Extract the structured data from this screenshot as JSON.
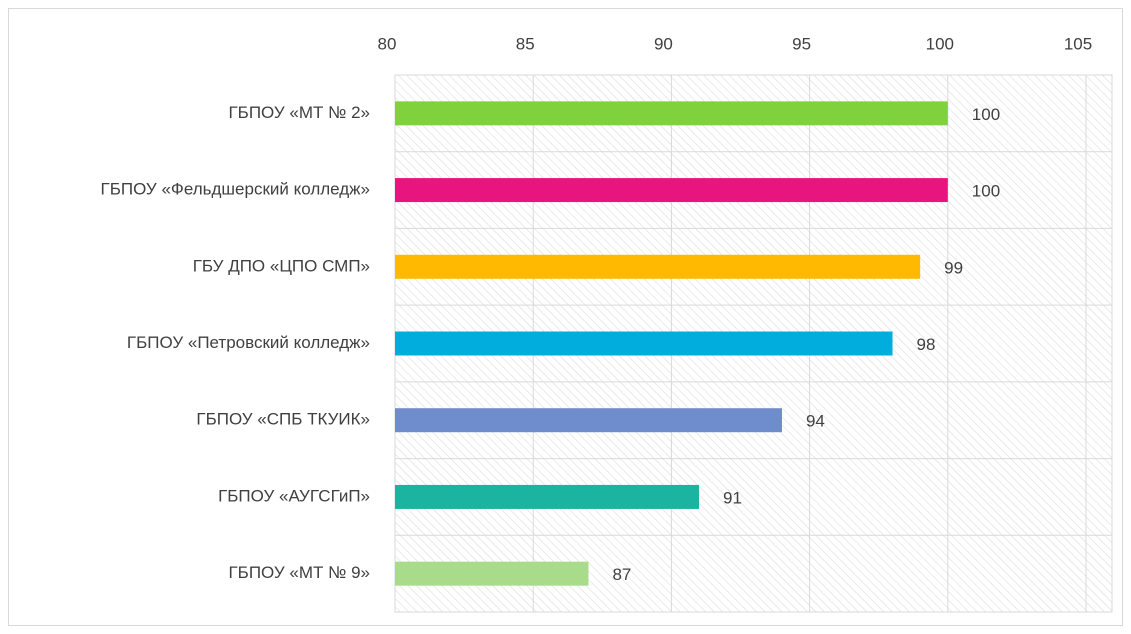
{
  "chart_data": {
    "type": "barh",
    "categories": [
      "ГБПОУ «МТ № 2»",
      "ГБПОУ «Фельдшерский колледж»",
      "ГБУ ДПО «ЦПО СМП»",
      "ГБПОУ «Петровский колледж»",
      "ГБПОУ «СПБ ТКУИК»",
      "ГБПОУ «АУГСГиП»",
      "ГБПОУ «МТ № 9»"
    ],
    "values": [
      100,
      100,
      99,
      98,
      94,
      91,
      87
    ],
    "colors": [
      "#80d23c",
      "#e8157f",
      "#ffb900",
      "#00addc",
      "#6f8ccd",
      "#1ab4a0",
      "#a8dc8a"
    ],
    "xlim": [
      80,
      105
    ],
    "xticks": [
      80,
      85,
      90,
      95,
      100,
      105
    ],
    "grid": true
  }
}
